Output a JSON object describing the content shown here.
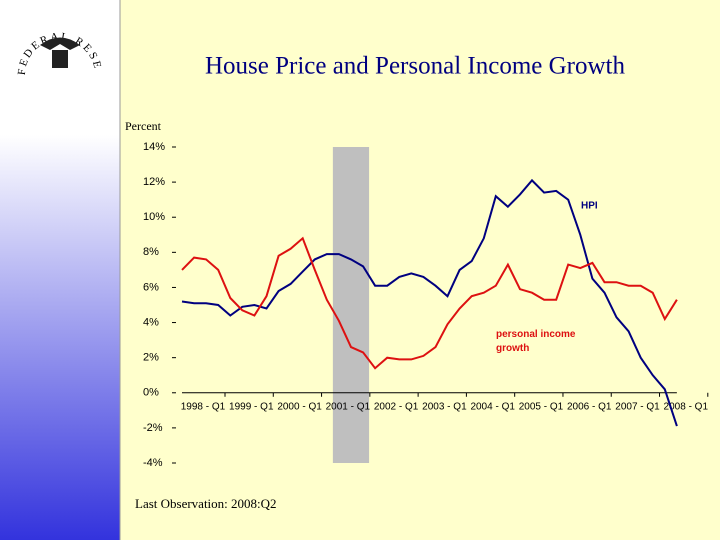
{
  "seal": "FEDERAL RESERVE BANK OF ST. LOUIS",
  "chart_data": {
    "type": "line",
    "title": "House Price and Personal Income Growth",
    "y_label": "Percent",
    "note": "Last Observation:  2008:Q2",
    "categories": [
      "1998 - Q1",
      null,
      null,
      null,
      "1999 - Q1",
      null,
      null,
      null,
      "2000 - Q1",
      null,
      null,
      null,
      "2001 - Q1",
      null,
      null,
      null,
      "2002 - Q1",
      null,
      null,
      null,
      "2003 - Q1",
      null,
      null,
      null,
      "2004 - Q1",
      null,
      null,
      null,
      "2005 - Q1",
      null,
      null,
      null,
      "2006 - Q1",
      null,
      null,
      null,
      "2007 - Q1",
      null,
      null,
      null,
      "2008 - Q1",
      null
    ],
    "series": [
      {
        "name": "HPI",
        "color": "#000080",
        "values": [
          5.2,
          5.1,
          5.1,
          5.0,
          4.4,
          4.9,
          5.0,
          4.8,
          5.8,
          6.2,
          6.9,
          7.6,
          7.9,
          7.9,
          7.6,
          7.2,
          6.1,
          6.1,
          6.6,
          6.8,
          6.6,
          6.1,
          5.5,
          7.0,
          7.5,
          8.8,
          11.2,
          10.6,
          11.3,
          12.1,
          11.4,
          11.5,
          11.0,
          9.0,
          6.5,
          5.7,
          4.3,
          3.5,
          2.0,
          1.0,
          0.2,
          -1.9
        ]
      },
      {
        "name": "personal income growth",
        "color": "#dd1111",
        "values": [
          7.0,
          7.7,
          7.6,
          7.0,
          5.4,
          4.7,
          4.4,
          5.5,
          7.8,
          8.2,
          8.8,
          7.0,
          5.3,
          4.1,
          2.6,
          2.3,
          1.4,
          2.0,
          1.9,
          1.9,
          2.1,
          2.6,
          3.9,
          4.8,
          5.5,
          5.7,
          6.1,
          7.3,
          5.9,
          5.7,
          5.3,
          5.3,
          7.3,
          7.1,
          7.4,
          6.3,
          6.3,
          6.1,
          6.1,
          5.7,
          4.2,
          5.3
        ]
      }
    ],
    "shade": [
      12.5,
      15.5
    ],
    "ylim": [
      -4,
      14
    ],
    "yticks": [
      {
        "value": -4,
        "label": "-4%"
      },
      {
        "value": -2,
        "label": "-2%"
      },
      {
        "value": 0,
        "label": "0%"
      },
      {
        "value": 2,
        "label": "2%"
      },
      {
        "value": 4,
        "label": "4%"
      },
      {
        "value": 6,
        "label": "6%"
      },
      {
        "value": 8,
        "label": "8%"
      },
      {
        "value": 10,
        "label": "10%"
      },
      {
        "value": 12,
        "label": "12%"
      },
      {
        "value": 14,
        "label": "14%"
      }
    ]
  }
}
